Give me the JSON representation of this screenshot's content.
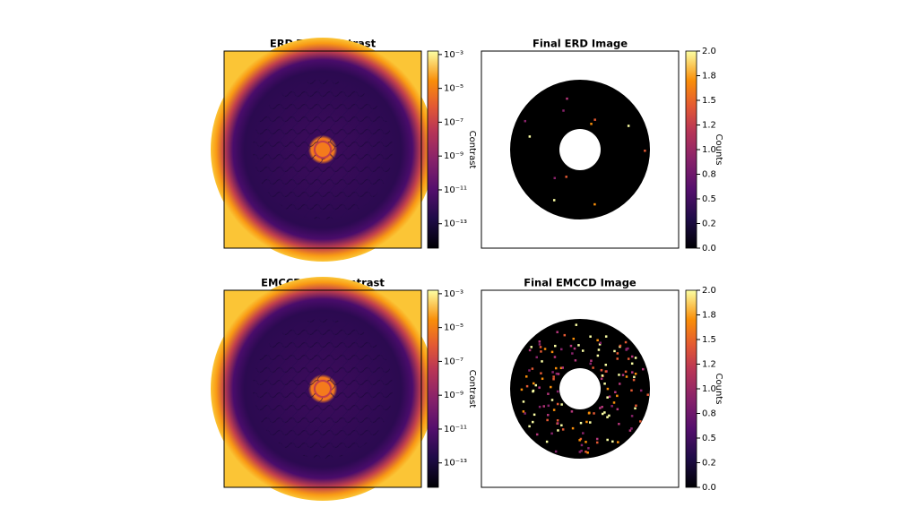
{
  "chart_data": [
    {
      "type": "contrast-image",
      "title": "ERD True Contrast",
      "colorbar": {
        "label": "Contrast",
        "log": true,
        "ylim": [
          0.0016,
          3.6e-15
        ],
        "yticks": [
          {
            "value": 0.001,
            "label": "10⁻³"
          },
          {
            "value": 1e-05,
            "label": "10⁻⁵"
          },
          {
            "value": 1e-07,
            "label": "10⁻⁷"
          },
          {
            "value": 1e-09,
            "label": "10⁻⁹"
          },
          {
            "value": 1e-11,
            "label": "10⁻¹¹"
          },
          {
            "value": 1e-13,
            "label": "10⁻¹³"
          }
        ]
      }
    },
    {
      "type": "count-image",
      "title": "Final ERD Image",
      "colorbar": {
        "label": "Counts",
        "log": false,
        "ylim": [
          2,
          0
        ],
        "yticks": [
          {
            "value": 0,
            "label": "0.0"
          },
          {
            "value": 0.25,
            "label": "0.2"
          },
          0.5,
          {
            "value": 0.75,
            "label": "0.8"
          },
          {
            "value": 1,
            "label": "1.0"
          },
          {
            "value": 1.25,
            "label": "1.2"
          },
          1.5,
          {
            "value": 1.75,
            "label": "1.8"
          },
          {
            "value": 2,
            "label": "2.0"
          }
        ]
      }
    },
    {
      "type": "contrast-image",
      "title": "EMCCD True Contrast",
      "colorbar": {
        "label": "Contrast",
        "log": true,
        "ylim": [
          0.0016,
          3.6e-15
        ],
        "yticks": [
          {
            "value": 0.001,
            "label": "10⁻³"
          },
          {
            "value": 1e-05,
            "label": "10⁻⁵"
          },
          {
            "value": 1e-07,
            "label": "10⁻⁷"
          },
          {
            "value": 1e-09,
            "label": "10⁻⁹"
          },
          {
            "value": 1e-11,
            "label": "10⁻¹¹"
          },
          {
            "value": 1e-13,
            "label": "10⁻¹³"
          }
        ]
      }
    },
    {
      "type": "count-image",
      "title": "Final EMCCD Image",
      "colorbar": {
        "label": "Counts",
        "log": false,
        "ylim": [
          2,
          0
        ],
        "yticks": [
          {
            "value": 0,
            "label": "0.0"
          },
          {
            "value": 0.25,
            "label": "0.2"
          },
          0.5,
          {
            "value": 0.75,
            "label": "0.8"
          },
          {
            "value": 1,
            "label": "1.0"
          },
          {
            "value": 1.25,
            "label": "1.2"
          },
          1.5,
          {
            "value": 1.75,
            "label": "1.8"
          },
          {
            "value": 2,
            "label": "2.0"
          }
        ]
      }
    }
  ]
}
